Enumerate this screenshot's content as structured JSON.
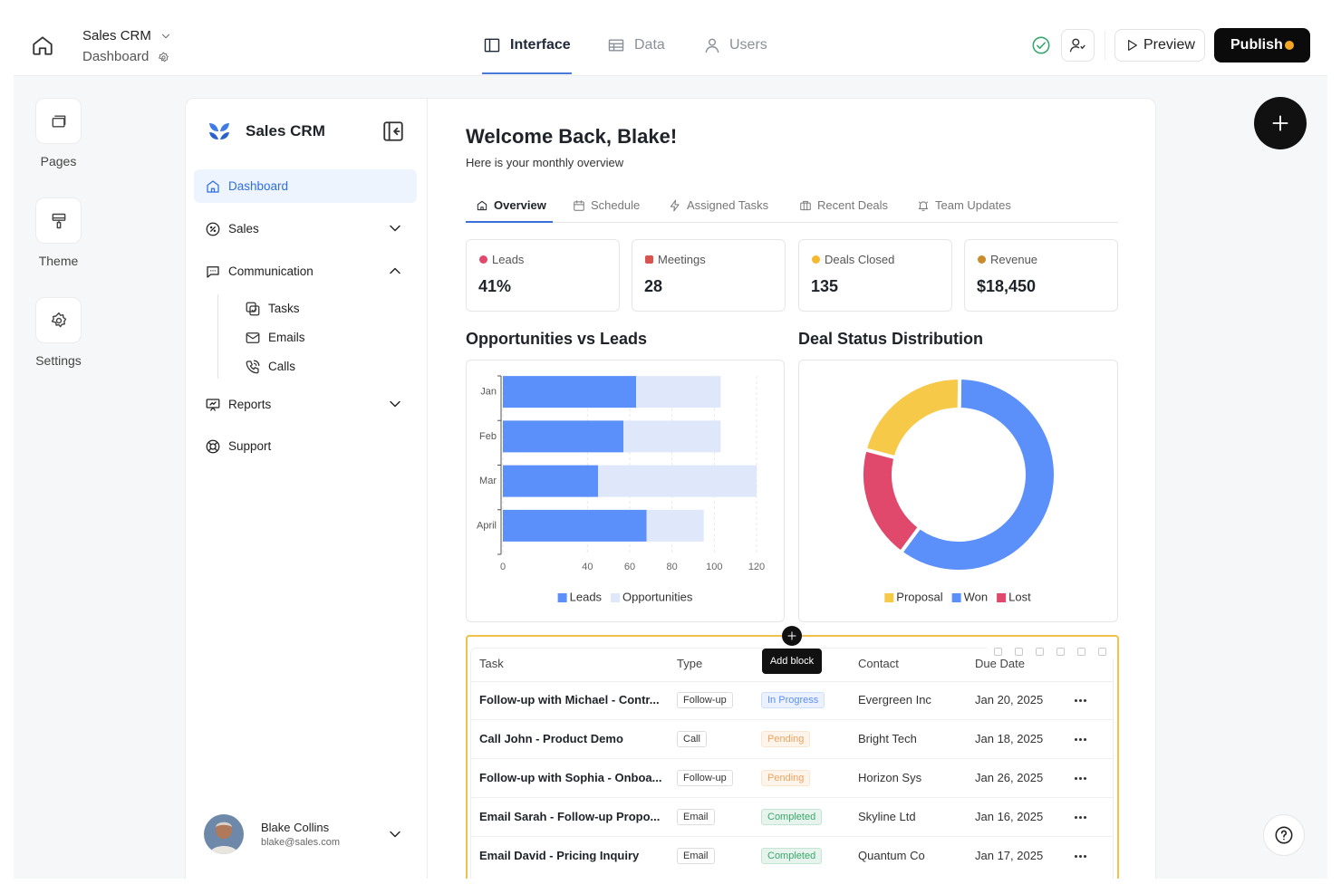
{
  "topbar": {
    "app": "Sales CRM",
    "page": "Dashboard",
    "tabs": [
      "Interface",
      "Data",
      "Users"
    ],
    "preview": "Preview",
    "publish": "Publish"
  },
  "rail": [
    "Pages",
    "Theme",
    "Settings"
  ],
  "sidebar": {
    "brand": "Sales CRM",
    "nav": [
      "Dashboard",
      "Sales",
      "Communication",
      "Reports",
      "Support"
    ],
    "subnav": [
      "Tasks",
      "Emails",
      "Calls"
    ],
    "user": {
      "name": "Blake Collins",
      "email": "blake@sales.com"
    }
  },
  "main": {
    "title": "Welcome Back, Blake!",
    "subtitle": "Here is your monthly overview",
    "tabs": [
      "Overview",
      "Schedule",
      "Assigned Tasks",
      "Recent Deals",
      "Team Updates"
    ],
    "stats": [
      {
        "label": "Leads",
        "value": "41%"
      },
      {
        "label": "Meetings",
        "value": "28"
      },
      {
        "label": "Deals Closed",
        "value": "135"
      },
      {
        "label": "Revenue",
        "value": "$18,450"
      }
    ]
  },
  "chart_data": [
    {
      "type": "bar",
      "orientation": "horizontal",
      "stacked": true,
      "title": "Opportunities vs Leads",
      "categories": [
        "Jan",
        "Feb",
        "Mar",
        "April"
      ],
      "series": [
        {
          "name": "Leads",
          "color": "#5b8ff9",
          "values": [
            63,
            57,
            45,
            68
          ]
        },
        {
          "name": "Opportunities",
          "color": "#dfe7fb",
          "values": [
            40,
            46,
            75,
            27
          ]
        }
      ],
      "xlim": [
        0,
        120
      ],
      "xticks": [
        0,
        40,
        60,
        80,
        100,
        120
      ],
      "grid": true,
      "legend": "bottom"
    },
    {
      "type": "pie",
      "donut": true,
      "title": "Deal Status Distribution",
      "categories": [
        "Proposal",
        "Won",
        "Lost"
      ],
      "values": [
        21,
        60,
        19
      ],
      "colors": [
        "#f7c948",
        "#5b8ff9",
        "#e0486c"
      ],
      "legend": "bottom"
    }
  ],
  "table": {
    "headers": {
      "task": "Task",
      "type": "Type",
      "contact": "Contact",
      "due": "Due Date"
    },
    "rows": [
      {
        "task": "Follow-up with Michael - Contr...",
        "type": "Follow-up",
        "status": "In Progress",
        "status_color": "#5b8ff9",
        "contact": "Evergreen Inc",
        "due": "Jan 20, 2025"
      },
      {
        "task": "Call John - Product Demo",
        "type": "Call",
        "status": "Pending",
        "status_color": "#f0a35e",
        "contact": "Bright Tech",
        "due": "Jan 18, 2025"
      },
      {
        "task": "Follow-up with Sophia - Onboa...",
        "type": "Follow-up",
        "status": "Pending",
        "status_color": "#f0a35e",
        "contact": "Horizon Sys",
        "due": "Jan 26, 2025"
      },
      {
        "task": "Email Sarah - Follow-up Propo...",
        "type": "Email",
        "status": "Completed",
        "status_color": "#3aa76d",
        "contact": "Skyline Ltd",
        "due": "Jan 16, 2025"
      },
      {
        "task": "Email David - Pricing Inquiry",
        "type": "Email",
        "status": "Completed",
        "status_color": "#3aa76d",
        "contact": "Quantum Co",
        "due": "Jan 17, 2025"
      }
    ]
  },
  "tooltip": "Add block"
}
